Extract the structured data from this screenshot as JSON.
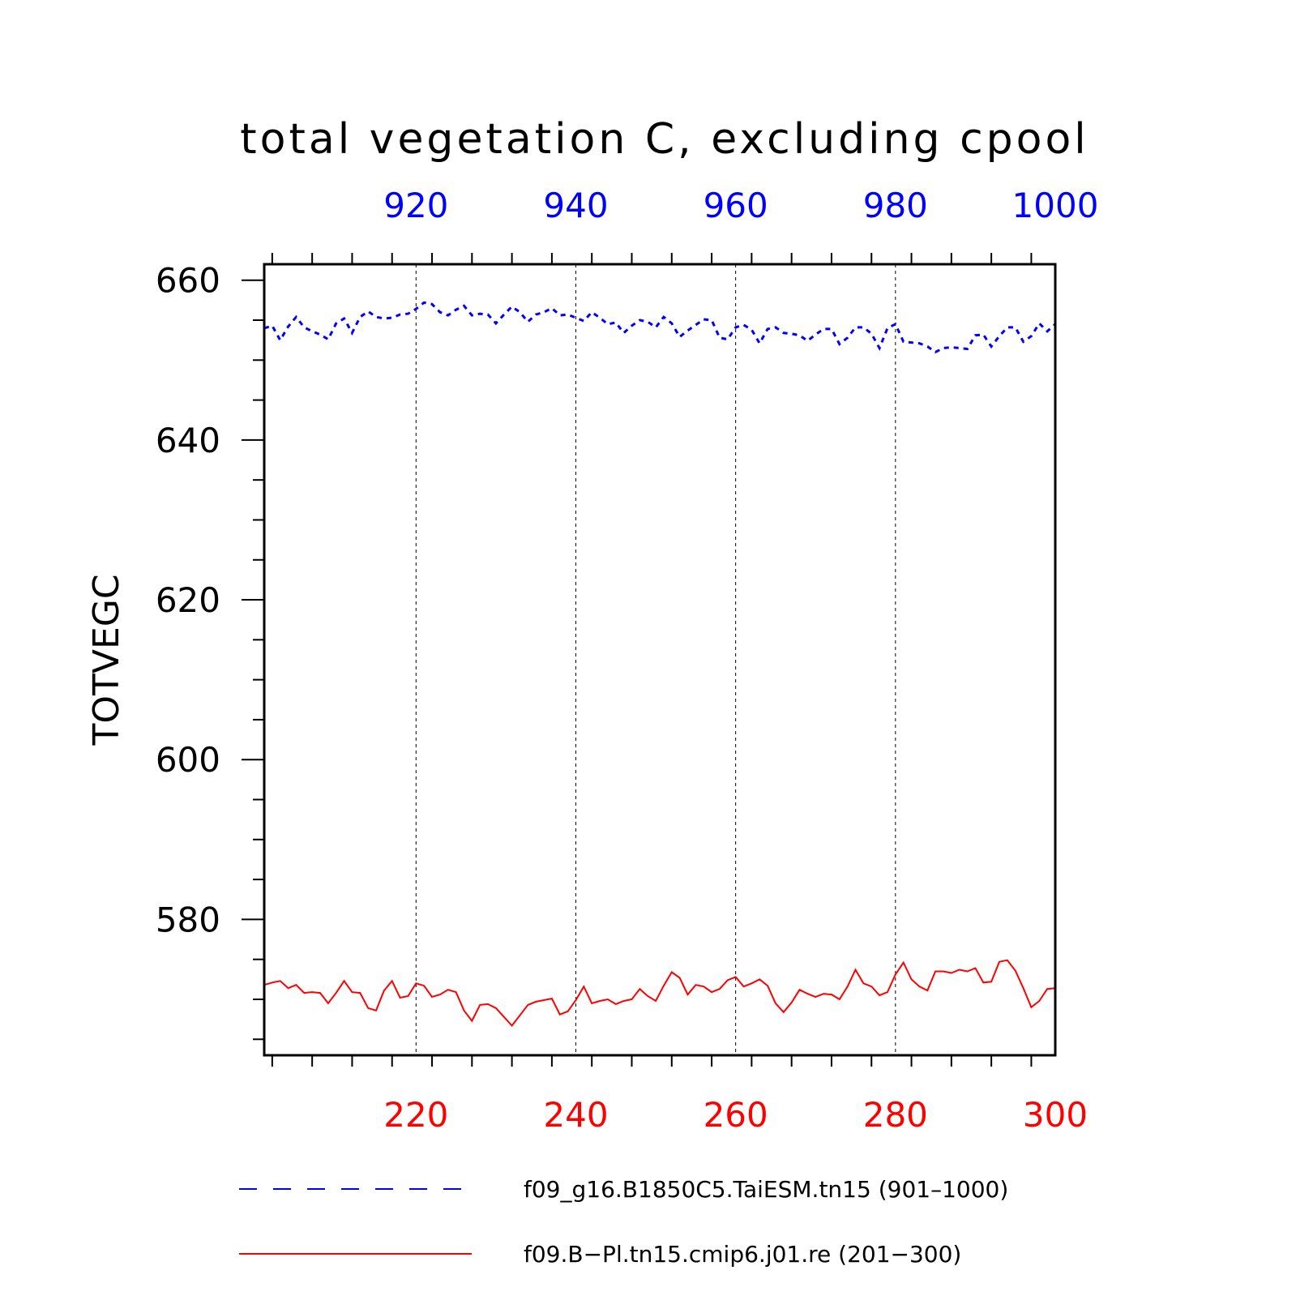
{
  "chart_data": {
    "type": "line",
    "title": "total vegetation C, excluding cpool",
    "ylabel": "TOTVEGC",
    "ylim": [
      563,
      662
    ],
    "y_ticks": [
      580,
      600,
      620,
      640,
      660
    ],
    "x_bottom": {
      "range": [
        201,
        300
      ],
      "ticks": [
        220,
        240,
        260,
        280,
        300
      ],
      "color": "#ff0000"
    },
    "x_top": {
      "range": [
        901,
        1000
      ],
      "ticks": [
        920,
        940,
        960,
        980,
        1000
      ],
      "color": "#0000ff"
    },
    "grid": "vertical dashed at major ticks",
    "series": [
      {
        "name": "f09_g16.B1850C5.TaiESM.tn15 (901–1000)",
        "axis": "top",
        "color": "#0000ff",
        "style": "dashed",
        "x_start": 901,
        "values": [
          654.0,
          654.3,
          652.5,
          654.2,
          655.4,
          654.1,
          653.6,
          653.2,
          652.6,
          654.6,
          655.2,
          653.4,
          655.4,
          656.1,
          655.4,
          655.2,
          655.3,
          655.7,
          655.8,
          656.4,
          657.2,
          657.0,
          656.0,
          655.6,
          656.3,
          656.8,
          655.6,
          655.8,
          655.7,
          654.6,
          655.7,
          656.7,
          656.0,
          654.8,
          655.7,
          656.0,
          656.5,
          655.6,
          655.7,
          655.3,
          654.9,
          656.0,
          655.3,
          654.5,
          654.7,
          653.4,
          654.3,
          655.0,
          654.8,
          654.1,
          655.4,
          654.6,
          652.9,
          653.7,
          654.4,
          655.1,
          655.0,
          652.8,
          652.6,
          654.1,
          654.4,
          653.8,
          652.1,
          653.9,
          654.1,
          653.4,
          653.3,
          653.1,
          652.4,
          653.2,
          653.9,
          653.9,
          652.0,
          652.8,
          654.1,
          654.1,
          653.3,
          651.5,
          654.0,
          654.5,
          652.3,
          652.2,
          652.1,
          651.7,
          651.0,
          651.5,
          651.6,
          651.5,
          651.4,
          653.1,
          653.2,
          651.7,
          653.0,
          654.1,
          654.1,
          652.3,
          653.0,
          654.6,
          653.6,
          654.5
        ]
      },
      {
        "name": "f09.B−Pl.tn15.cmip6.j01.re (201−300)",
        "axis": "bottom",
        "color": "#ff0000",
        "style": "solid",
        "x_start": 201,
        "values": [
          571.8,
          572.1,
          572.3,
          571.4,
          571.8,
          570.8,
          570.9,
          570.8,
          569.5,
          570.8,
          572.3,
          570.9,
          570.8,
          568.9,
          568.6,
          571.1,
          572.3,
          570.2,
          570.4,
          572.0,
          571.7,
          570.3,
          570.6,
          571.2,
          570.9,
          568.6,
          567.3,
          569.3,
          569.4,
          568.9,
          567.8,
          566.7,
          568.0,
          569.3,
          569.7,
          569.9,
          570.1,
          568.1,
          568.5,
          569.9,
          571.6,
          569.5,
          569.8,
          570.0,
          569.4,
          569.8,
          570.0,
          571.3,
          570.4,
          569.8,
          571.7,
          573.4,
          572.7,
          570.6,
          571.8,
          571.6,
          570.9,
          571.3,
          572.4,
          572.8,
          571.6,
          572.0,
          572.5,
          571.7,
          569.5,
          568.4,
          569.6,
          571.2,
          570.7,
          570.3,
          570.7,
          570.6,
          570.0,
          571.6,
          573.7,
          572.0,
          571.6,
          570.5,
          570.9,
          573.1,
          574.6,
          572.5,
          571.6,
          571.1,
          573.5,
          573.5,
          573.3,
          573.7,
          573.5,
          573.9,
          572.1,
          572.2,
          574.7,
          574.9,
          573.6,
          571.4,
          569.0,
          569.8,
          571.3,
          571.4
        ]
      }
    ]
  }
}
